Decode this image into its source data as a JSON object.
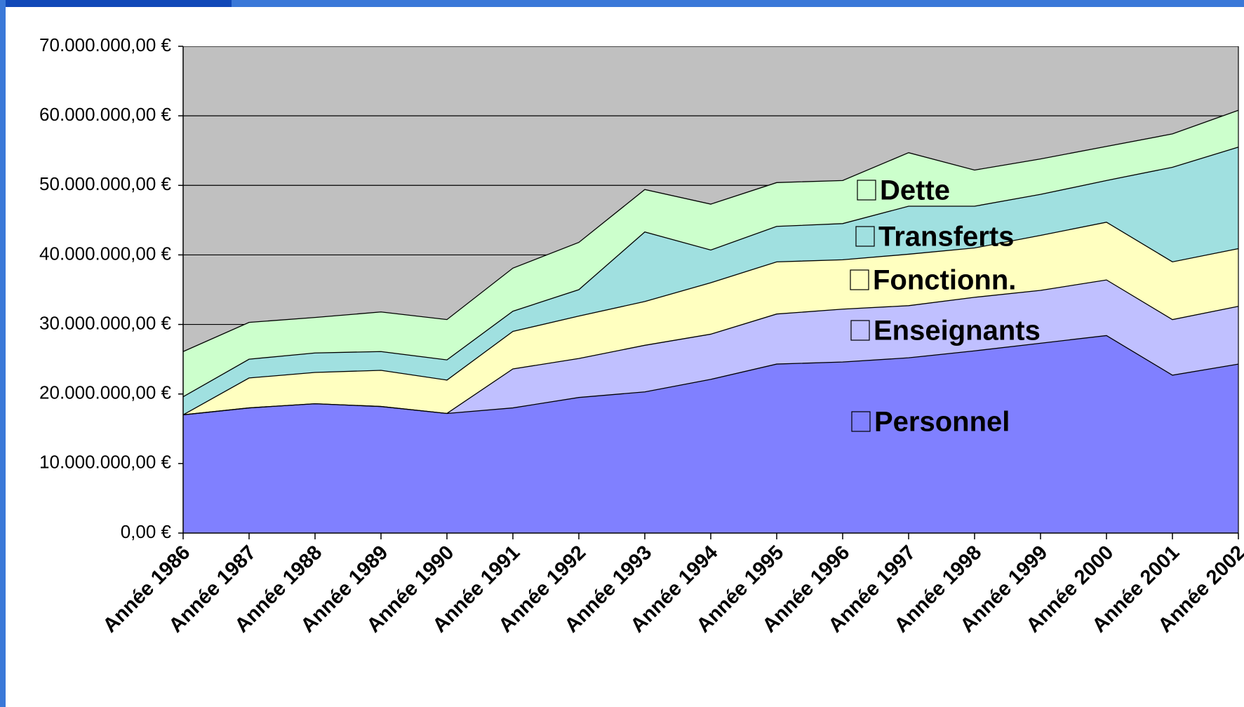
{
  "chart_data": {
    "type": "stacked_area",
    "categories": [
      "Année 1986",
      "Année 1987",
      "Année 1988",
      "Année 1989",
      "Année 1990",
      "Année 1991",
      "Année 1992",
      "Année 1993",
      "Année 1994",
      "Année 1995",
      "Année 1996",
      "Année 1997",
      "Année 1998",
      "Année 1999",
      "Année 2000",
      "Année 2001",
      "Année 2002"
    ],
    "series": [
      {
        "name": "Personnel",
        "color": "#8080ff",
        "values": [
          17000000,
          18000000,
          18600000,
          18200000,
          17200000,
          18000000,
          19500000,
          20300000,
          22100000,
          24300000,
          24600000,
          25200000,
          26200000,
          27300000,
          28400000,
          22700000,
          24300000
        ]
      },
      {
        "name": "Enseignants",
        "color": "#c0c0ff",
        "values": [
          0,
          0,
          0,
          0,
          0,
          5600000,
          5600000,
          6700000,
          6500000,
          7200000,
          7600000,
          7500000,
          7700000,
          7600000,
          8000000,
          8000000,
          8300000
        ]
      },
      {
        "name": "Fonctionn.",
        "color": "#ffffc0",
        "values": [
          0,
          4300000,
          4500000,
          5200000,
          4800000,
          5400000,
          6100000,
          6300000,
          7400000,
          7500000,
          7100000,
          7400000,
          7100000,
          7900000,
          8300000,
          8300000,
          8300000
        ]
      },
      {
        "name": "Transferts",
        "color": "#a0e0e0",
        "values": [
          2600000,
          2700000,
          2800000,
          2700000,
          2900000,
          2900000,
          3800000,
          10000000,
          4700000,
          5100000,
          5200000,
          6900000,
          6000000,
          5900000,
          6000000,
          13600000,
          14600000
        ]
      },
      {
        "name": "Dette",
        "color": "#ccffcc",
        "values": [
          6500000,
          5300000,
          5100000,
          5700000,
          5800000,
          6200000,
          6800000,
          6100000,
          6600000,
          6300000,
          6200000,
          7700000,
          5200000,
          5100000,
          4900000,
          4800000,
          5300000
        ]
      }
    ],
    "ylim": [
      0,
      70000000
    ],
    "yticks": [
      {
        "value": 0,
        "label": "0,00 €"
      },
      {
        "value": 10000000,
        "label": "10.000.000,00 €"
      },
      {
        "value": 20000000,
        "label": "20.000.000,00 €"
      },
      {
        "value": 30000000,
        "label": "30.000.000,00 €"
      },
      {
        "value": 40000000,
        "label": "40.000.000,00 €"
      },
      {
        "value": 50000000,
        "label": "50.000.000,00 €"
      },
      {
        "value": 60000000,
        "label": "60.000.000,00 €"
      },
      {
        "value": 70000000,
        "label": "70.000.000,00 €"
      }
    ],
    "grid": true,
    "plot_background": "#c0c0c0"
  }
}
